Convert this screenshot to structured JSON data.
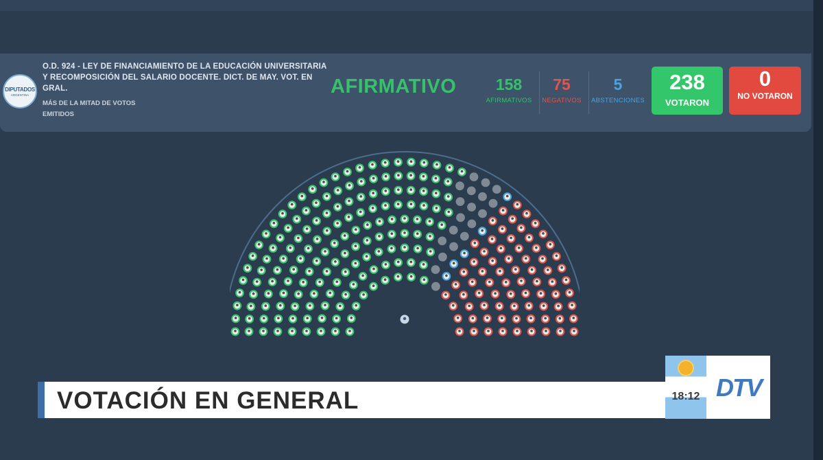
{
  "logo": {
    "line1": "DIPUTADOS",
    "line2": "ARGENTINA"
  },
  "bill": {
    "title": "O.D. 924 - LEY DE FINANCIAMIENTO DE LA EDUCACIÓN UNIVERSITARIA Y RECOMPOSICIÓN DEL SALARIO DOCENTE. DICT. DE MAY. VOT. EN GRAL.",
    "rule": "MÁS DE LA MITAD DE VOTOS EMITIDOS"
  },
  "result": "AFIRMATIVO",
  "counts": {
    "afirmativos": {
      "value": "158",
      "label": "AFIRMATIVOS"
    },
    "negativos": {
      "value": "75",
      "label": "NEGATIVOS"
    },
    "abstenciones": {
      "value": "5",
      "label": "ABSTENCIONES"
    }
  },
  "totals": {
    "votaron": {
      "value": "238",
      "label": "VOTARON"
    },
    "no_votaron": {
      "value": "0",
      "label": "NO VOTARON"
    }
  },
  "colors": {
    "afirmativo": "#35c26a",
    "negativo": "#e0554d",
    "abstencion": "#4da3de",
    "ausente": "#7f8a94",
    "banner_accent": "#3d6ea5"
  },
  "seat_counts": {
    "afirmativo": 158,
    "negativo": 75,
    "abstencion": 5,
    "ausente": 19
  },
  "banner": {
    "title": "VOTACIÓN EN GENERAL"
  },
  "clock": "18:12",
  "channel_logo": "DTV"
}
